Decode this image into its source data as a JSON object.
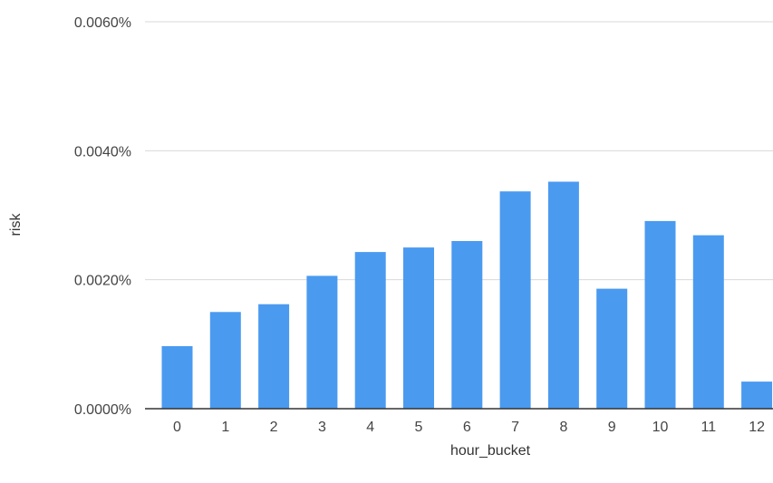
{
  "chart_data": {
    "type": "bar",
    "title": "",
    "xlabel": "hour_bucket",
    "ylabel": "risk",
    "categories": [
      "0",
      "1",
      "2",
      "3",
      "4",
      "5",
      "6",
      "7",
      "8",
      "9",
      "10",
      "11",
      "12"
    ],
    "series": [
      {
        "values": [
          0.00097,
          0.0015,
          0.00162,
          0.00206,
          0.00243,
          0.0025,
          0.0026,
          0.00337,
          0.00352,
          0.00186,
          0.00291,
          0.00269,
          0.00042
        ]
      }
    ],
    "ylim": [
      0,
      0.006
    ],
    "yticks": [
      0,
      0.002,
      0.004,
      0.006
    ],
    "ytick_labels": [
      "0.0000%",
      "0.0020%",
      "0.0040%",
      "0.0060%"
    ],
    "grid": true,
    "bar_color": "#4a9af0"
  }
}
